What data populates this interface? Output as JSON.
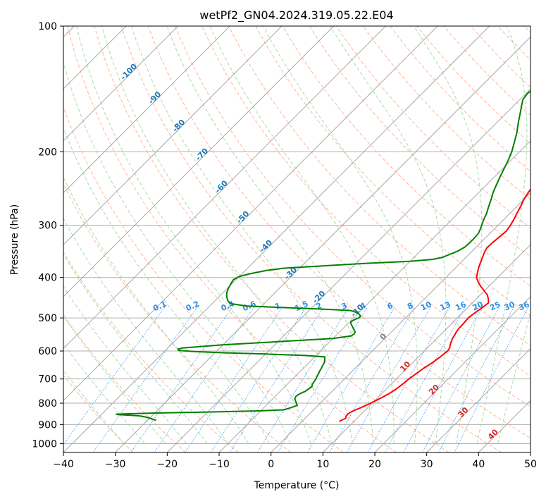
{
  "chart_data": {
    "type": "line",
    "title": "wetPf2_GN04.2024.319.05.22.E04",
    "xlabel": "Temperature (°C)",
    "ylabel": "Pressure (hPa)",
    "xlim": [
      -40,
      50
    ],
    "ylim": [
      1050,
      100
    ],
    "y_scale": "log",
    "x_ticks": [
      -40,
      -30,
      -20,
      -10,
      0,
      10,
      20,
      30,
      40,
      50
    ],
    "y_ticks": [
      100,
      200,
      300,
      400,
      500,
      600,
      700,
      800,
      900,
      1000
    ],
    "grid": true,
    "skew": "skewed isotherms (Skew-T log-P diagram)",
    "colors": {
      "temperature": "#ff0000",
      "dewpoint": "#008000",
      "isotherms": "#a8a8a8",
      "dry_adiabats": "#ff9c7c",
      "moist_adiabats": "#9cd39c",
      "mixing_ratio": "#2c8de8",
      "isotherm_labels": "#1f77b4",
      "mixing_ratio_labels": "#2c8de8",
      "adiabat_labels": "#d62728",
      "zero_label": "#808080"
    },
    "isotherm_labels": [
      "-100",
      "-90",
      "-80",
      "-70",
      "-60",
      "-50",
      "-40",
      "-30",
      "-20",
      "-10",
      "0",
      "10",
      "20",
      "30",
      "40"
    ],
    "mixing_ratio_labels": [
      "0.1",
      "0.2",
      "0.4",
      "0.6",
      "1",
      "1.5",
      "2",
      "3",
      "4",
      "6",
      "8",
      "10",
      "13",
      "16",
      "20",
      "25",
      "30",
      "36"
    ],
    "series": [
      {
        "key": "temperature",
        "pressure": [
          885,
          880,
          870,
          860,
          850,
          840,
          830,
          820,
          810,
          800,
          780,
          760,
          740,
          720,
          700,
          680,
          660,
          640,
          620,
          600,
          590,
          580,
          570,
          560,
          550,
          540,
          530,
          520,
          510,
          500,
          490,
          480,
          470,
          460,
          450,
          440,
          430,
          420,
          410,
          400,
          390,
          380,
          370,
          360,
          350,
          340,
          330,
          320,
          310,
          300,
          290,
          280,
          270,
          260,
          250,
          240,
          230,
          220,
          210,
          200,
          190,
          180,
          170,
          160,
          155,
          150,
          145,
          140,
          135,
          130,
          125,
          120,
          115,
          110,
          105,
          100
        ],
        "temp": [
          7.2,
          7.3,
          7.8,
          7.5,
          7.4,
          7.6,
          8.1,
          8.7,
          9.2,
          9.7,
          10.6,
          11.4,
          11.9,
          12.2,
          12.4,
          12.8,
          13.2,
          13.8,
          14.2,
          14.5,
          14.3,
          13.8,
          13.4,
          13.0,
          12.8,
          12.5,
          12.3,
          12.3,
          12.2,
          12.1,
          12.3,
          12.6,
          12.9,
          13.1,
          12.3,
          11.3,
          9.9,
          8.4,
          7.1,
          5.9,
          5.2,
          4.5,
          3.9,
          3.3,
          2.7,
          2.2,
          2.3,
          2.5,
          2.7,
          2.4,
          1.9,
          1.3,
          0.7,
          0.0,
          -0.5,
          -0.9,
          -1.1,
          -1.3,
          -1.5,
          -1.4,
          -1.0,
          -0.4,
          0.2,
          1.1,
          1.9,
          3.1,
          4.4,
          5.9,
          7.2,
          8.3,
          9.0,
          9.5,
          9.9,
          10.5,
          11.2,
          12.0
        ]
      },
      {
        "key": "dewpoint",
        "pressure": [
          880,
          870,
          862,
          858,
          855,
          852,
          850,
          845,
          840,
          835,
          830,
          820,
          810,
          800,
          790,
          780,
          770,
          760,
          750,
          740,
          730,
          720,
          700,
          690,
          680,
          670,
          660,
          650,
          640,
          630,
          620,
          615,
          610,
          606,
          602,
          598,
          594,
          590,
          580,
          570,
          560,
          552,
          546,
          540,
          535,
          528,
          520,
          515,
          510,
          505,
          500,
          495,
          490,
          485,
          480,
          478,
          475,
          472,
          468,
          462,
          455,
          445,
          435,
          425,
          415,
          405,
          398,
          392,
          385,
          380,
          376,
          370,
          366,
          362,
          358,
          353,
          346,
          338,
          330,
          322,
          314,
          306,
          298,
          290,
          282,
          274,
          266,
          258,
          250,
          240,
          230,
          220,
          210,
          200,
          190,
          180,
          170,
          160,
          155,
          150,
          145,
          140,
          135,
          130,
          125,
          120,
          115,
          110,
          105,
          100
        ],
        "temp": [
          -28.3,
          -29.8,
          -31.3,
          -32.5,
          -34.5,
          -36.8,
          -37.2,
          -30.5,
          -20.0,
          -10.5,
          -5.8,
          -4.8,
          -4.0,
          -4.6,
          -5.2,
          -5.8,
          -6.0,
          -5.8,
          -5.2,
          -5.0,
          -4.8,
          -5.2,
          -5.5,
          -5.8,
          -6.0,
          -6.3,
          -6.5,
          -6.8,
          -7.0,
          -7.5,
          -8.0,
          -12.0,
          -20.0,
          -28.0,
          -34.0,
          -37.5,
          -37.8,
          -37.2,
          -30.0,
          -20.0,
          -10.0,
          -7.0,
          -6.8,
          -7.0,
          -7.5,
          -8.2,
          -9.0,
          -9.5,
          -9.8,
          -9.5,
          -9.0,
          -9.0,
          -9.6,
          -10.5,
          -12.0,
          -15.0,
          -20.0,
          -26.0,
          -33.0,
          -36.5,
          -37.5,
          -38.5,
          -39.3,
          -39.8,
          -40.2,
          -40.5,
          -40.0,
          -38.5,
          -36.0,
          -33.0,
          -27.0,
          -18.0,
          -10.0,
          -6.0,
          -4.5,
          -3.8,
          -2.8,
          -2.2,
          -2.1,
          -2.1,
          -2.2,
          -2.7,
          -3.3,
          -3.9,
          -4.4,
          -5.1,
          -5.8,
          -6.5,
          -7.3,
          -8.1,
          -8.9,
          -9.7,
          -10.5,
          -11.5,
          -12.8,
          -14.2,
          -15.9,
          -17.6,
          -18.5,
          -19.4,
          -19.7,
          -19.4,
          -18.8,
          -18.0,
          -17.2,
          -16.4,
          -15.6,
          -14.8,
          -14.2,
          -13.6
        ]
      }
    ]
  }
}
